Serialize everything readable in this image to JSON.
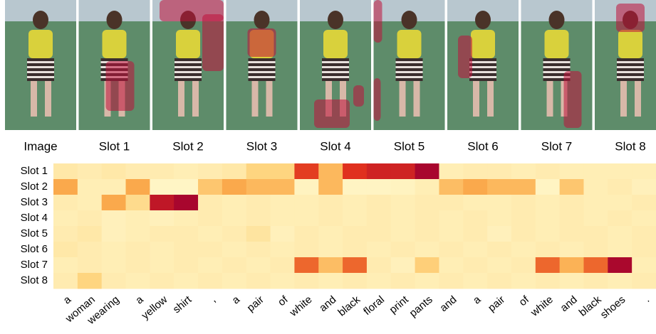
{
  "panels": [
    "Image",
    "Slot 1",
    "Slot 2",
    "Slot 3",
    "Slot 4",
    "Slot 5",
    "Slot 6",
    "Slot 7",
    "Slot 8"
  ],
  "chart_data": {
    "type": "heatmap",
    "rows": [
      "Slot 1",
      "Slot 2",
      "Slot 3",
      "Slot 4",
      "Slot 5",
      "Slot 6",
      "Slot 7",
      "Slot 8"
    ],
    "columns": [
      "a",
      "woman",
      "wearing",
      "a",
      "yellow",
      "shirt",
      ",",
      "a",
      "pair",
      "of",
      "white",
      "and",
      "black",
      "floral",
      "print",
      "pants",
      "and",
      "a",
      "pair",
      "of",
      "white",
      "and",
      "black",
      "shoes",
      "."
    ],
    "values": [
      [
        0.15,
        0.12,
        0.15,
        0.12,
        0.12,
        0.1,
        0.12,
        0.15,
        0.3,
        0.3,
        0.72,
        0.4,
        0.75,
        0.82,
        0.82,
        0.97,
        0.1,
        0.12,
        0.12,
        0.1,
        0.12,
        0.1,
        0.1,
        0.1,
        0.1
      ],
      [
        0.45,
        0.1,
        0.1,
        0.45,
        0.04,
        0.04,
        0.35,
        0.45,
        0.4,
        0.4,
        0.06,
        0.4,
        0.05,
        0.05,
        0.06,
        0.1,
        0.38,
        0.45,
        0.4,
        0.4,
        0.05,
        0.35,
        0.1,
        0.12,
        0.08
      ],
      [
        0.12,
        0.1,
        0.45,
        0.25,
        0.88,
        0.97,
        0.12,
        0.1,
        0.12,
        0.1,
        0.1,
        0.12,
        0.1,
        0.12,
        0.1,
        0.12,
        0.12,
        0.1,
        0.1,
        0.12,
        0.1,
        0.12,
        0.1,
        0.1,
        0.12
      ],
      [
        0.1,
        0.12,
        0.08,
        0.1,
        0.08,
        0.1,
        0.12,
        0.1,
        0.12,
        0.1,
        0.1,
        0.12,
        0.1,
        0.12,
        0.1,
        0.12,
        0.1,
        0.12,
        0.1,
        0.12,
        0.1,
        0.12,
        0.1,
        0.12,
        0.1
      ],
      [
        0.12,
        0.15,
        0.08,
        0.1,
        0.12,
        0.12,
        0.1,
        0.12,
        0.18,
        0.08,
        0.12,
        0.1,
        0.12,
        0.12,
        0.1,
        0.12,
        0.1,
        0.12,
        0.08,
        0.12,
        0.1,
        0.12,
        0.12,
        0.1,
        0.12
      ],
      [
        0.15,
        0.12,
        0.1,
        0.12,
        0.1,
        0.12,
        0.12,
        0.1,
        0.12,
        0.1,
        0.12,
        0.1,
        0.12,
        0.1,
        0.12,
        0.1,
        0.12,
        0.1,
        0.12,
        0.1,
        0.12,
        0.1,
        0.12,
        0.1,
        0.12
      ],
      [
        0.1,
        0.12,
        0.1,
        0.12,
        0.1,
        0.12,
        0.1,
        0.12,
        0.1,
        0.12,
        0.62,
        0.38,
        0.62,
        0.12,
        0.08,
        0.32,
        0.1,
        0.12,
        0.1,
        0.12,
        0.62,
        0.42,
        0.62,
        0.96,
        0.1
      ],
      [
        0.12,
        0.3,
        0.12,
        0.1,
        0.12,
        0.1,
        0.12,
        0.1,
        0.12,
        0.1,
        0.12,
        0.1,
        0.12,
        0.1,
        0.12,
        0.1,
        0.12,
        0.1,
        0.12,
        0.1,
        0.12,
        0.1,
        0.12,
        0.1,
        0.12
      ]
    ]
  }
}
